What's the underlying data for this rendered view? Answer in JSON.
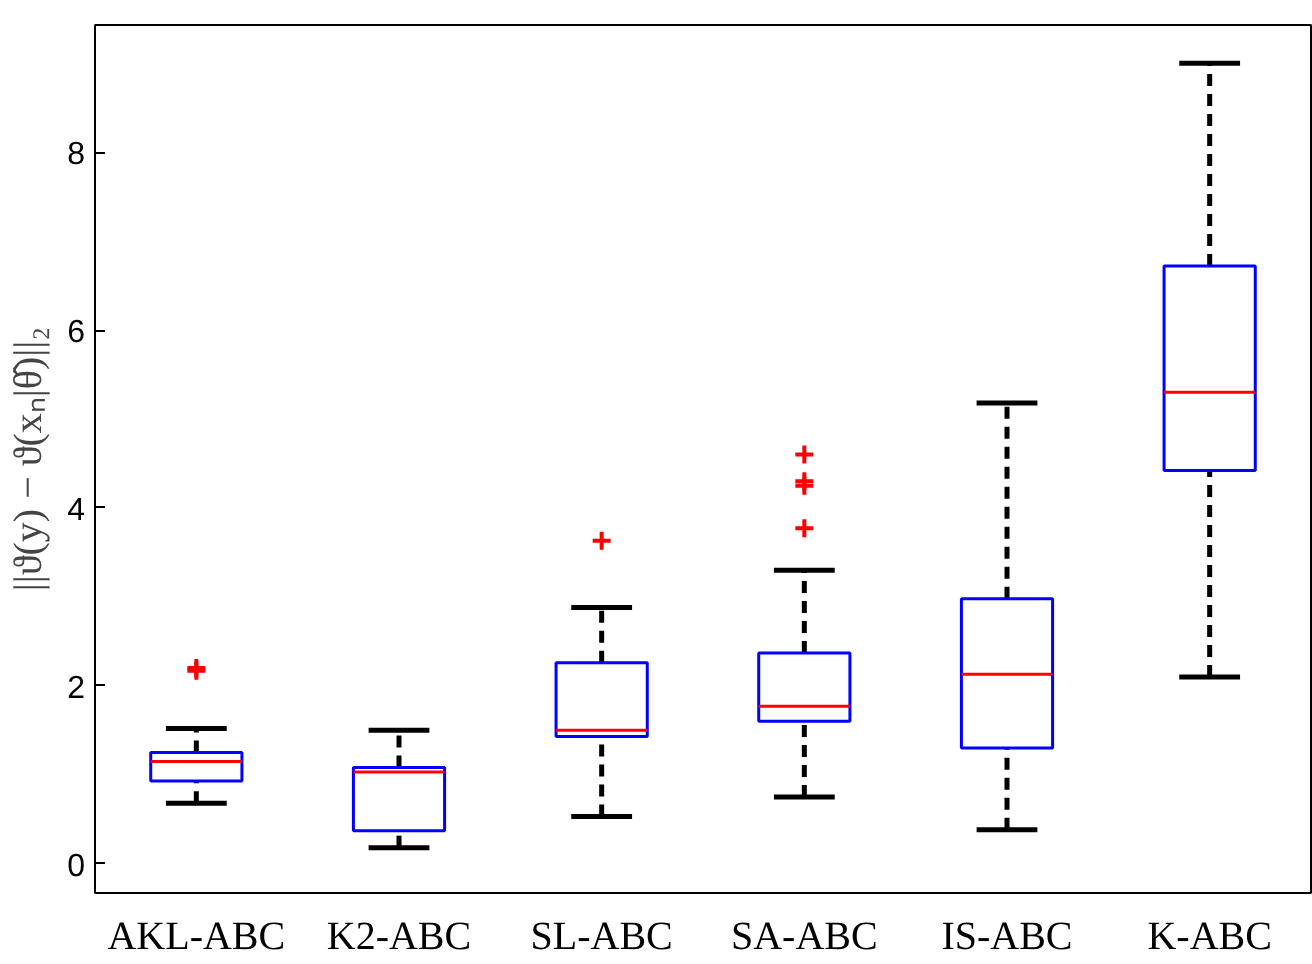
{
  "chart_data": {
    "type": "box",
    "ylabel": "||ϑ(y) − ϑ(xₙ|θ̂)||₂",
    "categories": [
      "AKL-ABC",
      "K2-ABC",
      "SL-ABC",
      "SA-ABC",
      "IS-ABC",
      "K-ABC"
    ],
    "boxes": [
      {
        "low": 0.68,
        "q1": 0.93,
        "median": 1.15,
        "q3": 1.25,
        "high": 1.52,
        "outliers": [
          2.2,
          2.17
        ]
      },
      {
        "low": 0.18,
        "q1": 0.37,
        "median": 1.03,
        "q3": 1.08,
        "high": 1.5
      },
      {
        "low": 0.53,
        "q1": 1.43,
        "median": 1.5,
        "q3": 2.26,
        "high": 2.88,
        "outliers": [
          3.63
        ]
      },
      {
        "low": 0.75,
        "q1": 1.6,
        "median": 1.77,
        "q3": 2.37,
        "high": 3.3,
        "outliers": [
          4.6,
          4.3,
          4.25,
          3.77
        ]
      },
      {
        "low": 0.38,
        "q1": 1.3,
        "median": 2.13,
        "q3": 2.98,
        "high": 5.18
      },
      {
        "low": 2.1,
        "q1": 4.42,
        "median": 5.3,
        "q3": 6.72,
        "high": 9.0
      }
    ],
    "color": "#0000ff",
    "line_style": "dashed",
    "ylim": [
      -0.33,
      9.43
    ],
    "yticks": [
      0,
      2,
      4,
      6,
      8
    ],
    "grid": false
  }
}
